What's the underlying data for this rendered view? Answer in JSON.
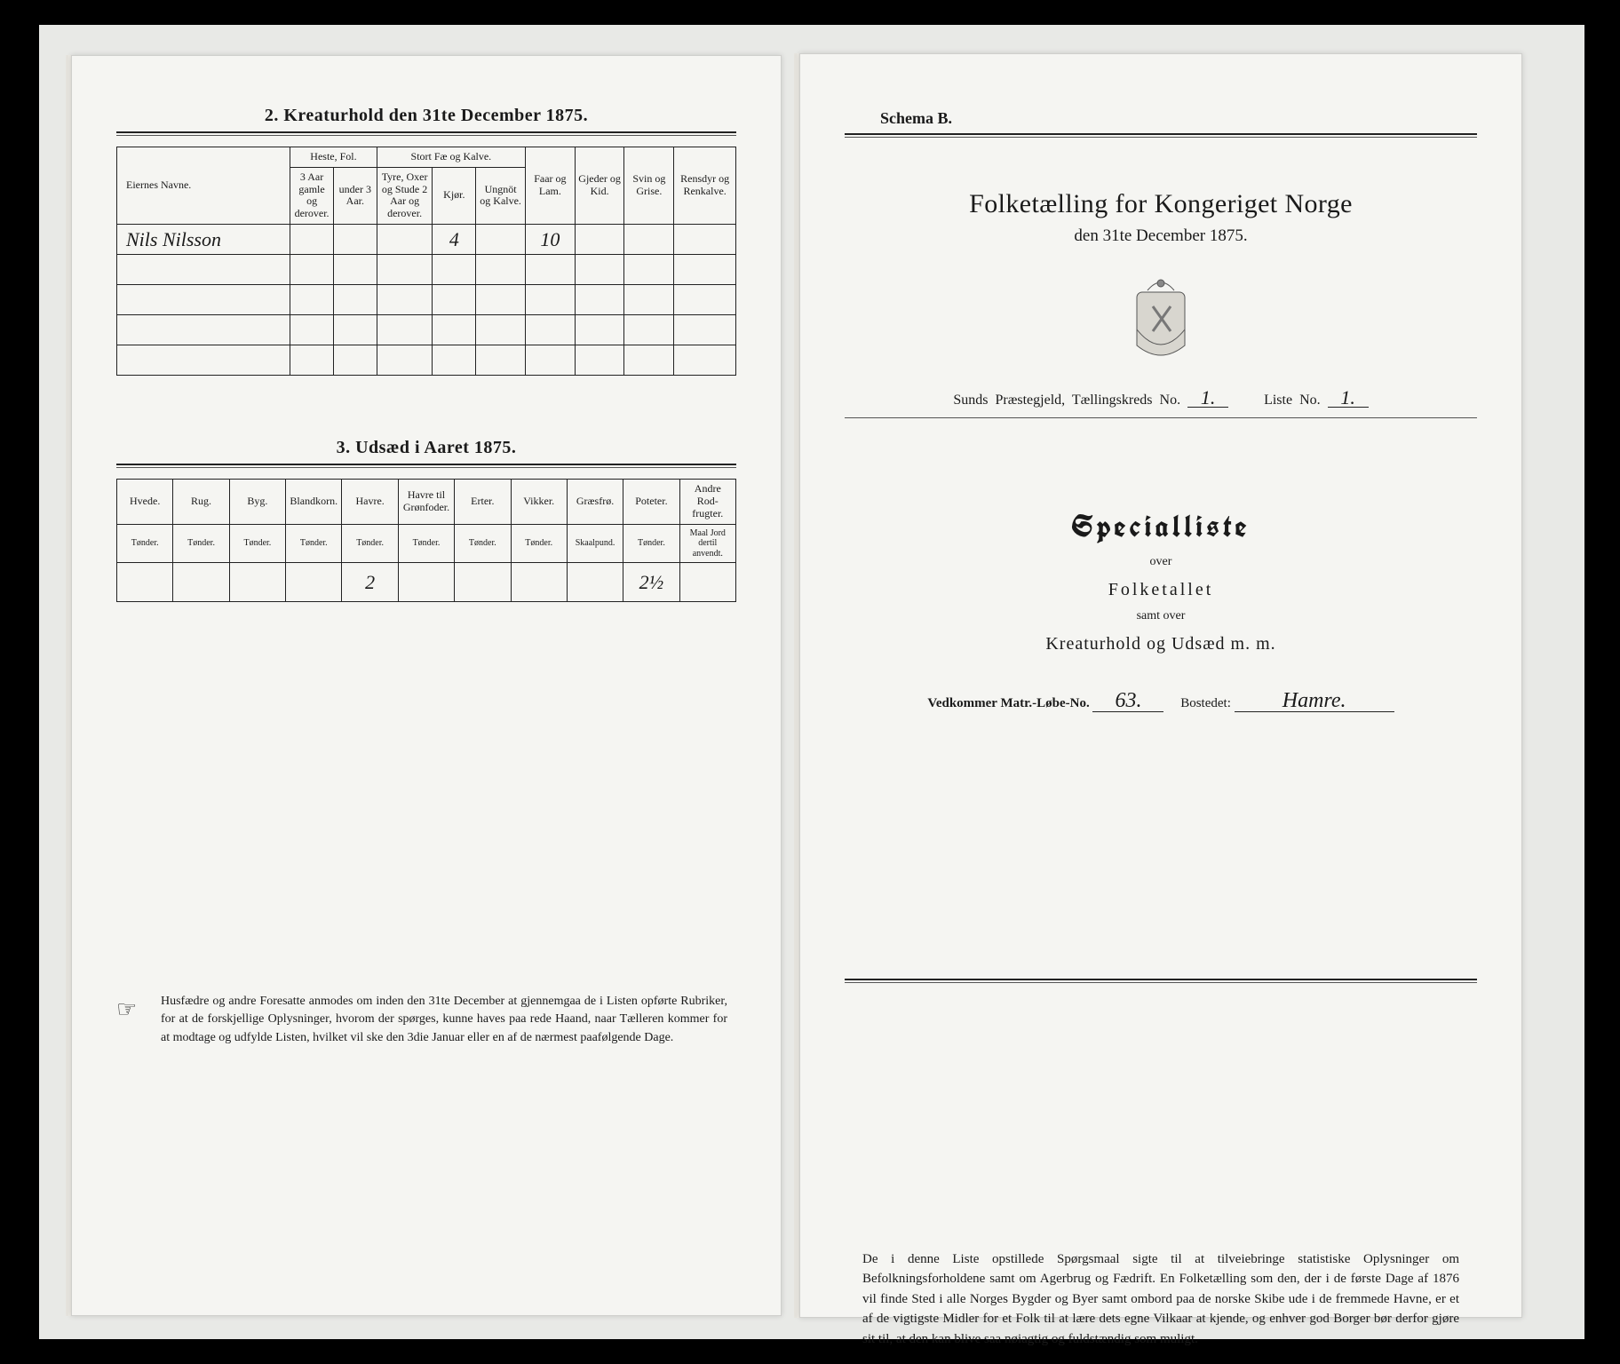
{
  "left": {
    "section2": {
      "title": "2.  Kreaturhold den 31te December 1875.",
      "group_headers": [
        "Eiernes Navne.",
        "Heste, Fol.",
        "Stort Fæ og Kalve.",
        "Faar og Lam.",
        "Gjeder og Kid.",
        "Svin og Grise.",
        "Rensdyr og Renkalve."
      ],
      "sub_headers": [
        "3 Aar gamle og derover.",
        "under 3 Aar.",
        "Tyre, Oxer og Stude 2 Aar og derover.",
        "Kjør.",
        "Ungnöt og Kalve."
      ],
      "rows": [
        {
          "name": "Nils Nilsson",
          "cells": [
            "",
            "",
            "",
            "4",
            "",
            "10",
            "",
            "",
            ""
          ]
        },
        {
          "name": "",
          "cells": [
            "",
            "",
            "",
            "",
            "",
            "",
            "",
            "",
            ""
          ]
        },
        {
          "name": "",
          "cells": [
            "",
            "",
            "",
            "",
            "",
            "",
            "",
            "",
            ""
          ]
        },
        {
          "name": "",
          "cells": [
            "",
            "",
            "",
            "",
            "",
            "",
            "",
            "",
            ""
          ]
        },
        {
          "name": "",
          "cells": [
            "",
            "",
            "",
            "",
            "",
            "",
            "",
            "",
            ""
          ]
        }
      ]
    },
    "section3": {
      "title": "3.  Udsæd i Aaret 1875.",
      "headers": [
        "Hvede.",
        "Rug.",
        "Byg.",
        "Blandkorn.",
        "Havre.",
        "Havre til Grønfoder.",
        "Erter.",
        "Vikker.",
        "Græsfrø.",
        "Poteter.",
        "Andre Rod-frugter."
      ],
      "units": [
        "Tønder.",
        "Tønder.",
        "Tønder.",
        "Tønder.",
        "Tønder.",
        "Tønder.",
        "Tønder.",
        "Tønder.",
        "Skaalpund.",
        "Tønder.",
        "Maal Jord dertil anvendt."
      ],
      "row": [
        "",
        "",
        "",
        "",
        "2",
        "",
        "",
        "",
        "",
        "2½",
        ""
      ]
    },
    "footnote": "Husfædre og andre Foresatte anmodes om inden den 31te December at gjennemgaa de i Listen opførte Rubriker, for at de forskjellige Oplysninger, hvorom der spørges, kunne haves paa rede Haand, naar Tælleren kommer for at modtage og udfylde Listen, hvilket vil ske den 3die Januar eller en af de nærmest paafølgende Dage."
  },
  "right": {
    "schema": "Schema B.",
    "title": "Folketælling for Kongeriget Norge",
    "subtitle": "den 31te December 1875.",
    "line": {
      "prefix": "Sunds  Præstegjeld,  Tællingskreds No.",
      "kreds": "1.",
      "mid": "Liste No.",
      "liste": "1."
    },
    "special": {
      "heading": "Specialliste",
      "over1": "over",
      "folket": "Folketallet",
      "samt": "samt over",
      "kreat": "Kreaturhold  og  Udsæd  m. m."
    },
    "matr": {
      "l1": "Vedkommer Matr.-Løbe-No.",
      "no": "63.",
      "l2": "Bostedet:",
      "sted": "Hamre."
    },
    "bottom": "De i denne Liste opstillede Spørgsmaal sigte til at tilveiebringe statistiske Oplysninger om Befolkningsforholdene samt om Agerbrug og Fædrift.  En Folketælling som den, der i de første Dage af 1876 vil finde Sted i alle Norges Bygder og Byer samt ombord paa de norske Skibe ude i de fremmede Havne, er et af de vigtigste Midler for et Folk til at lære dets egne Vilkaar at kjende, og enhver god Borger bør derfor gjøre sit til, at den kan blive saa nøiagtig og fuldstændig som muligt."
  }
}
